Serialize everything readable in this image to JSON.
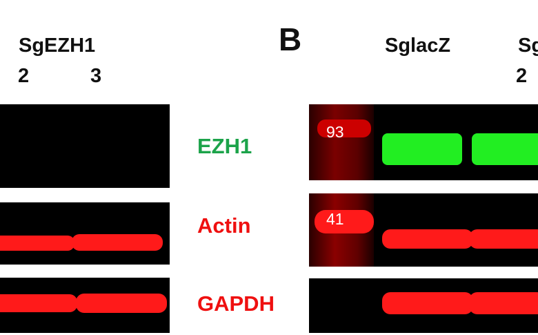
{
  "panel_a": {
    "group_label": "SgEZH1",
    "lanes": [
      "2",
      "3"
    ]
  },
  "panel_b": {
    "panel_letter": "B",
    "group_labels": [
      "SglacZ",
      "Sg"
    ],
    "lanes": [
      "2"
    ],
    "marker_labels": {
      "ezh1": "93",
      "actin": "41"
    }
  },
  "blot_labels": {
    "ezh1": "EZH1",
    "actin": "Actin",
    "gapdh": "GAPDH"
  },
  "colors": {
    "ezh1_label": "#1ca34a",
    "actin_label": "#ef1010",
    "gapdh_label": "#ef1010",
    "green_band": "#22ee22",
    "red_band": "#ff1a1a",
    "blot_background": "#000000"
  }
}
